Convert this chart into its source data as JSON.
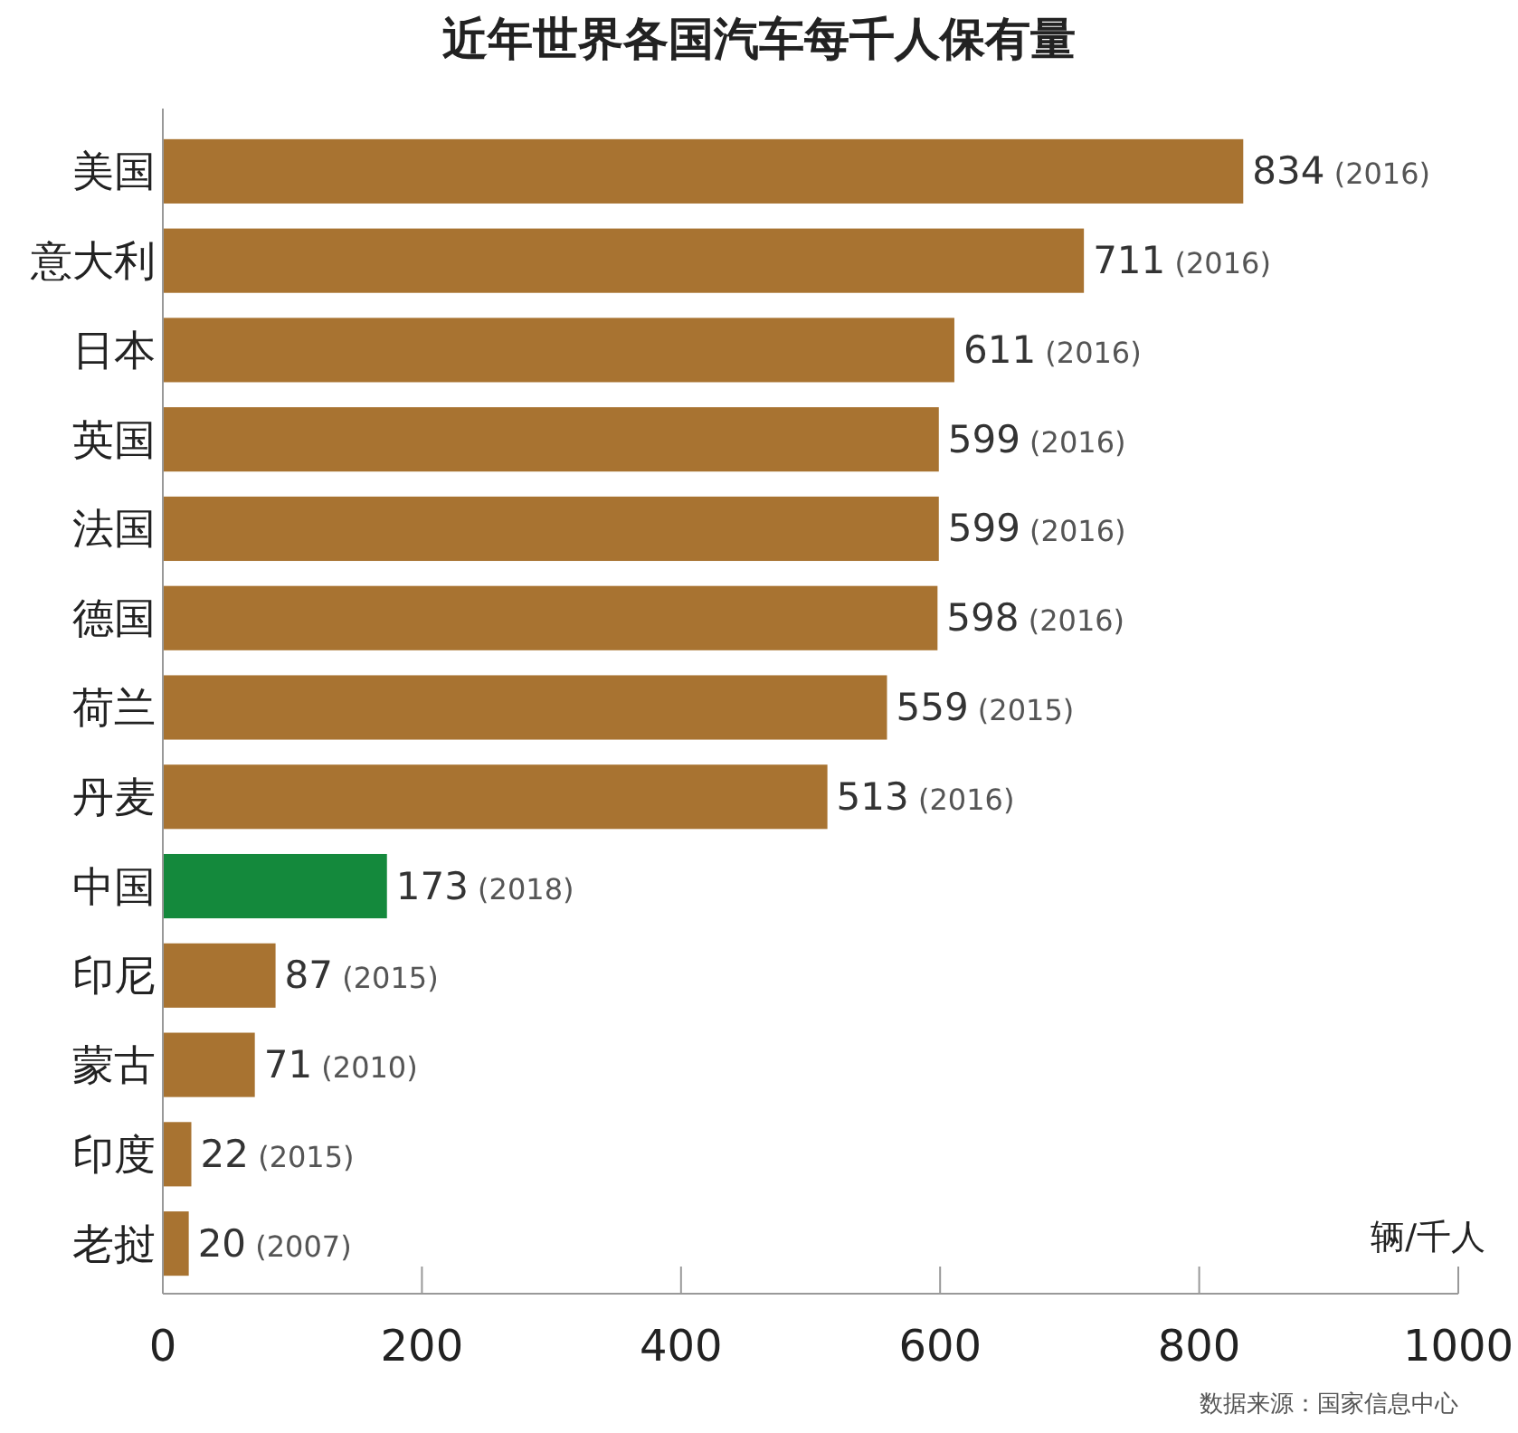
{
  "chart_data": {
    "type": "bar",
    "orientation": "horizontal",
    "title": "近年世界各国汽车每千人保有量",
    "xlabel": "辆/千人",
    "categories": [
      "美国",
      "意大利",
      "日本",
      "英国",
      "法国",
      "德国",
      "荷兰",
      "丹麦",
      "中国",
      "印尼",
      "蒙古",
      "印度",
      "老挝"
    ],
    "values": [
      834,
      711,
      611,
      599,
      599,
      598,
      559,
      513,
      173,
      87,
      71,
      22,
      20
    ],
    "colors": [
      "#a87331",
      "#a87331",
      "#a87331",
      "#a87331",
      "#a87331",
      "#a87331",
      "#a87331",
      "#a87331",
      "#14893c",
      "#a87331",
      "#a87331",
      "#a87331",
      "#a87331"
    ],
    "value_labels": [
      "834 (2016)",
      "711 (2016)",
      "611 (2016)",
      "599 (2016)",
      "599 (2016)",
      "598 (2016)",
      "559 (2015)",
      "513 (2016)",
      "173 (2018)",
      "87 (2015)",
      "71 (2010)",
      "22 (2015)",
      "20 (2007)"
    ],
    "xlim": [
      0,
      1000
    ],
    "xticks": [
      0,
      200,
      400,
      600,
      800,
      1000
    ],
    "grid": false,
    "annotations": [
      "数据来源：国家信息中心"
    ]
  }
}
